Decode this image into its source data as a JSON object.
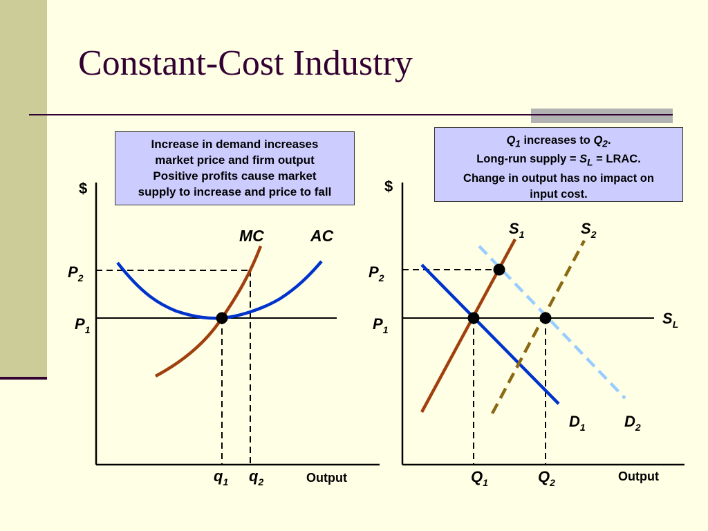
{
  "slide": {
    "title": "Constant-Cost Industry"
  },
  "left_note": {
    "lines": [
      "Increase in demand increases",
      "market price and firm output",
      "Positive profits cause market",
      "supply to increase and price to fall"
    ]
  },
  "right_note": {
    "line1": {
      "q1": "Q",
      "q1_sub": "1",
      "mid": " increases to ",
      "q2": "Q",
      "q2_sub": "2",
      "end": "."
    },
    "line2": {
      "pre": "Long-run supply = ",
      "s": "S",
      "s_sub": "L",
      "post": " = LRAC."
    },
    "line3": "Change in output has no impact on",
    "line4": "input cost."
  },
  "firm_graph": {
    "y_axis_label": "$",
    "x_axis_label": "Output",
    "curves": {
      "mc": "MC",
      "ac": "AC"
    },
    "prices": {
      "p1": "P",
      "p1_sub": "1",
      "p2": "P",
      "p2_sub": "2"
    },
    "quantities": {
      "q1": "q",
      "q1_sub": "1",
      "q2": "q",
      "q2_sub": "2"
    }
  },
  "market_graph": {
    "y_axis_label": "$",
    "x_axis_label": "Output",
    "supply": {
      "s1": "S",
      "s1_sub": "1",
      "s2": "S",
      "s2_sub": "2",
      "sl": "S",
      "sl_sub": "L"
    },
    "demand": {
      "d1": "D",
      "d1_sub": "1",
      "d2": "D",
      "d2_sub": "2"
    },
    "prices": {
      "p1": "P",
      "p1_sub": "1",
      "p2": "P",
      "p2_sub": "2"
    },
    "quantities": {
      "q1": "Q",
      "q1_sub": "1",
      "q2": "Q",
      "q2_sub": "2"
    }
  },
  "colors": {
    "mc_curve": "#A0400F",
    "ac_curve": "#0033CC",
    "s1_curve": "#A0400F",
    "s2_curve": "#8B6914",
    "d1_curve": "#0033CC",
    "d2_curve": "#99CCFF",
    "title": "#330033"
  }
}
